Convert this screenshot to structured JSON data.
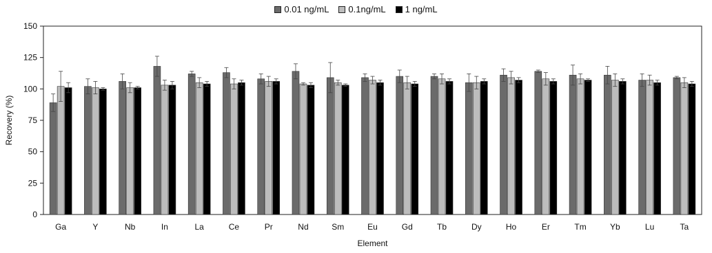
{
  "chart_data": {
    "type": "bar",
    "xlabel": "Element",
    "ylabel": "Recovery (%)",
    "ylim": [
      0,
      150
    ],
    "yticks": [
      0,
      25,
      50,
      75,
      100,
      125,
      150
    ],
    "grid": false,
    "legend_position": "top-center",
    "categories": [
      "Ga",
      "Y",
      "Nb",
      "In",
      "La",
      "Ce",
      "Pr",
      "Nd",
      "Sm",
      "Eu",
      "Gd",
      "Tb",
      "Dy",
      "Ho",
      "Er",
      "Tm",
      "Yb",
      "Lu",
      "Ta"
    ],
    "series": [
      {
        "name": "0.01 ng/mL",
        "color": "#6b6b6b",
        "values": [
          89,
          102,
          106,
          118,
          112,
          113,
          108,
          114,
          109,
          109,
          110,
          110,
          105,
          111,
          114,
          111,
          111,
          107,
          109
        ],
        "errors": [
          7,
          6,
          6,
          8,
          2,
          4,
          4,
          6,
          12,
          3,
          5,
          2,
          7,
          5,
          1,
          8,
          7,
          5,
          1
        ]
      },
      {
        "name": "0.1ng/mL",
        "color": "#bdbdbd",
        "values": [
          102,
          101,
          101,
          103,
          105,
          104,
          106,
          104,
          105,
          107,
          105,
          108,
          105,
          109,
          108,
          108,
          107,
          107,
          105
        ],
        "errors": [
          12,
          5,
          4,
          4,
          4,
          4,
          4,
          1,
          2,
          3,
          5,
          4,
          5,
          5,
          5,
          4,
          5,
          4,
          4
        ]
      },
      {
        "name": "1 ng/mL",
        "color": "#000000",
        "values": [
          101,
          100,
          101,
          103,
          104,
          105,
          106,
          103,
          103,
          105,
          104,
          106,
          106,
          107,
          106,
          107,
          106,
          105,
          104
        ],
        "errors": [
          4,
          1,
          1,
          3,
          2,
          2,
          2,
          2,
          1,
          2,
          2,
          2,
          2,
          2,
          2,
          1,
          2,
          2,
          2
        ]
      }
    ]
  }
}
